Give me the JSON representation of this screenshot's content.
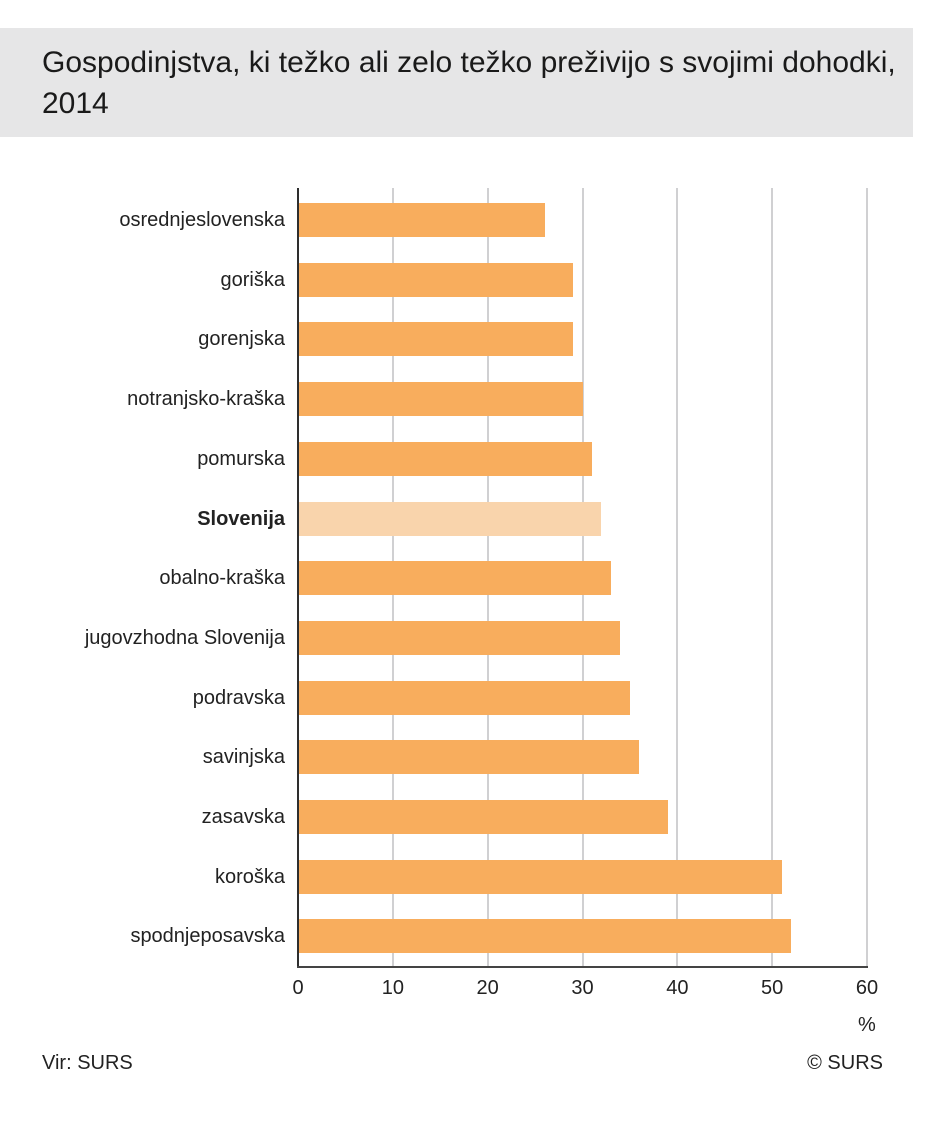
{
  "header": {
    "title": "Gospodinjstva, ki težko ali zelo težko preživijo s svojimi dohodki, 2014"
  },
  "footer": {
    "source": "Vir: SURS",
    "copyright": "© SURS"
  },
  "axis": {
    "unit": "%",
    "ticks": [
      "0",
      "10",
      "20",
      "30",
      "40",
      "50",
      "60"
    ]
  },
  "colors": {
    "bar": "#f8ad5d",
    "highlight_bar": "#f9d4ac",
    "title_background": "#e6e6e7",
    "gridline": "#d0d0d2"
  },
  "chart_data": {
    "type": "bar",
    "orientation": "horizontal",
    "title": "Gospodinjstva, ki težko ali zelo težko preživijo s svojimi dohodki, 2014",
    "xlabel": "%",
    "ylabel": "",
    "xlim": [
      0,
      60
    ],
    "grid": true,
    "categories": [
      "osrednjeslovenska",
      "goriška",
      "gorenjska",
      "notranjsko-kraška",
      "pomurska",
      "Slovenija",
      "obalno-kraška",
      "jugovzhodna Slovenija",
      "podravska",
      "savinjska",
      "zasavska",
      "koroška",
      "spodnjeposavska"
    ],
    "values": [
      26,
      29,
      29,
      30,
      31,
      32,
      33,
      34,
      35,
      36,
      39,
      51,
      52
    ],
    "highlighted": [
      "Slovenija"
    ],
    "source": "Vir: SURS",
    "annotations": [
      "© SURS"
    ]
  }
}
